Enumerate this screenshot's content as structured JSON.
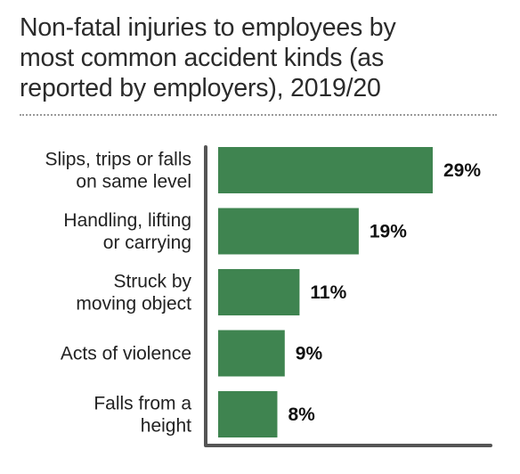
{
  "chart_data": {
    "type": "bar",
    "orientation": "horizontal",
    "title": "Non-fatal injuries to employees by most common accident kinds (as reported by employers), 2019/20",
    "title_lines": [
      "Non-fatal injuries to employees by",
      "most common accident kinds (as",
      "reported by employers), 2019/20"
    ],
    "categories": [
      [
        "Slips, trips or falls",
        "on same level"
      ],
      [
        "Handling, lifting",
        "or carrying"
      ],
      [
        "Struck by",
        "moving object"
      ],
      [
        "Acts of violence"
      ],
      [
        "Falls from a",
        "height"
      ]
    ],
    "values": [
      29,
      19,
      11,
      9,
      8
    ],
    "value_labels": [
      "29%",
      "19%",
      "11%",
      "9%",
      "8%"
    ],
    "unit": "%",
    "xlim": [
      0,
      40
    ],
    "grid": false,
    "legend": "none",
    "bar_color": "#3f8450",
    "axis_color": "#555555"
  }
}
